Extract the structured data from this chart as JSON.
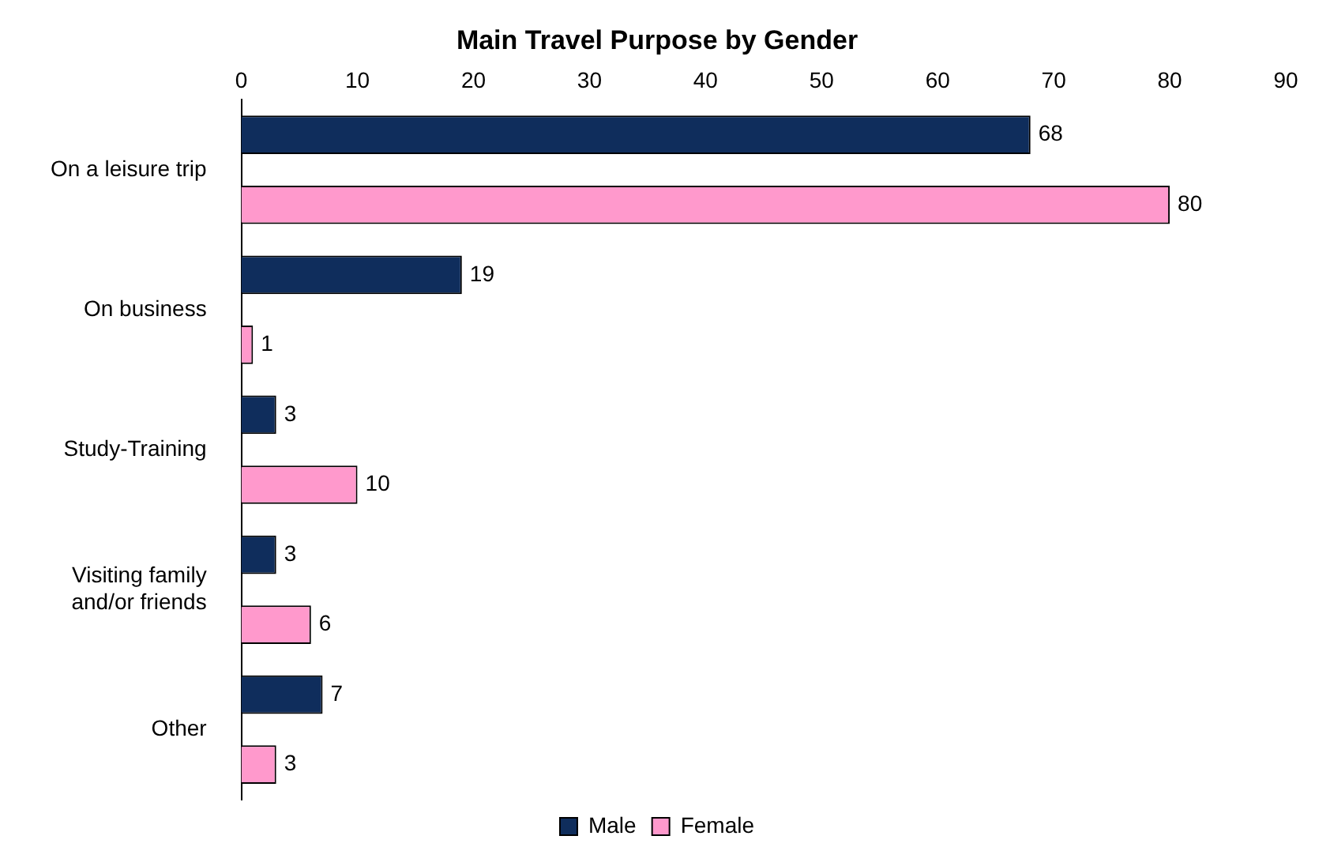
{
  "chart_data": {
    "type": "bar",
    "orientation": "horizontal",
    "title": "Main Travel Purpose by Gender",
    "categories": [
      "On a leisure trip",
      "On business",
      "Study-Training",
      "Visiting family and/or friends",
      "Other"
    ],
    "series": [
      {
        "name": "Male",
        "color": "#0f2d5c",
        "values": [
          68,
          19,
          3,
          3,
          7
        ]
      },
      {
        "name": "Female",
        "color": "#ff99cc",
        "values": [
          80,
          1,
          10,
          6,
          3
        ]
      }
    ],
    "xlim": [
      0,
      90
    ],
    "xticks": [
      0,
      10,
      20,
      30,
      40,
      50,
      60,
      70,
      80,
      90
    ],
    "grid": false,
    "legend": "bottom",
    "data_labels": true
  }
}
